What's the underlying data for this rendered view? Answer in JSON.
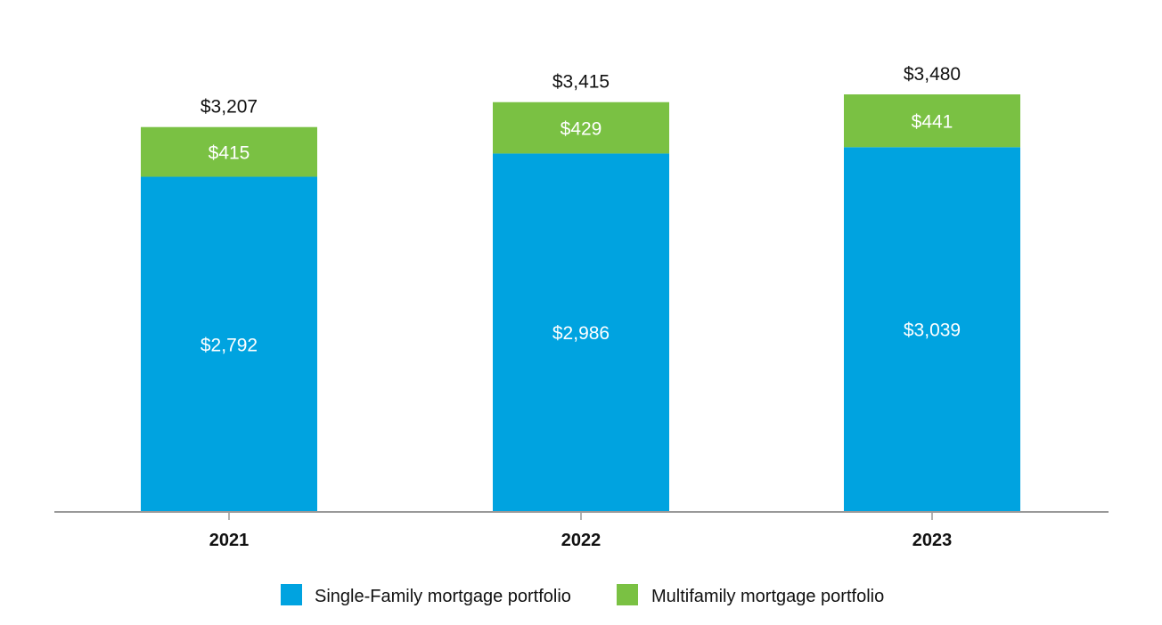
{
  "chart_data": {
    "type": "bar",
    "stacked": true,
    "categories": [
      "2021",
      "2022",
      "2023"
    ],
    "series": [
      {
        "name": "Single-Family mortgage portfolio",
        "values": [
          2792,
          2986,
          3039
        ],
        "labels": [
          "$2,792",
          "$2,986",
          "$3,039"
        ],
        "color": "#00A3E0"
      },
      {
        "name": "Multifamily mortgage portfolio",
        "values": [
          415,
          429,
          441
        ],
        "labels": [
          "$415",
          "$429",
          "$441"
        ],
        "color": "#7AC143"
      }
    ],
    "totals": [
      3207,
      3415,
      3480
    ],
    "total_labels": [
      "$3,207",
      "$3,415",
      "$3,480"
    ],
    "ylim": [
      0,
      3480
    ],
    "grid": false,
    "legend_position": "bottom",
    "title": "",
    "xlabel": "",
    "ylabel": ""
  },
  "colors": {
    "axis": "#999999",
    "text": "#111111",
    "inside_label": "#ffffff"
  }
}
